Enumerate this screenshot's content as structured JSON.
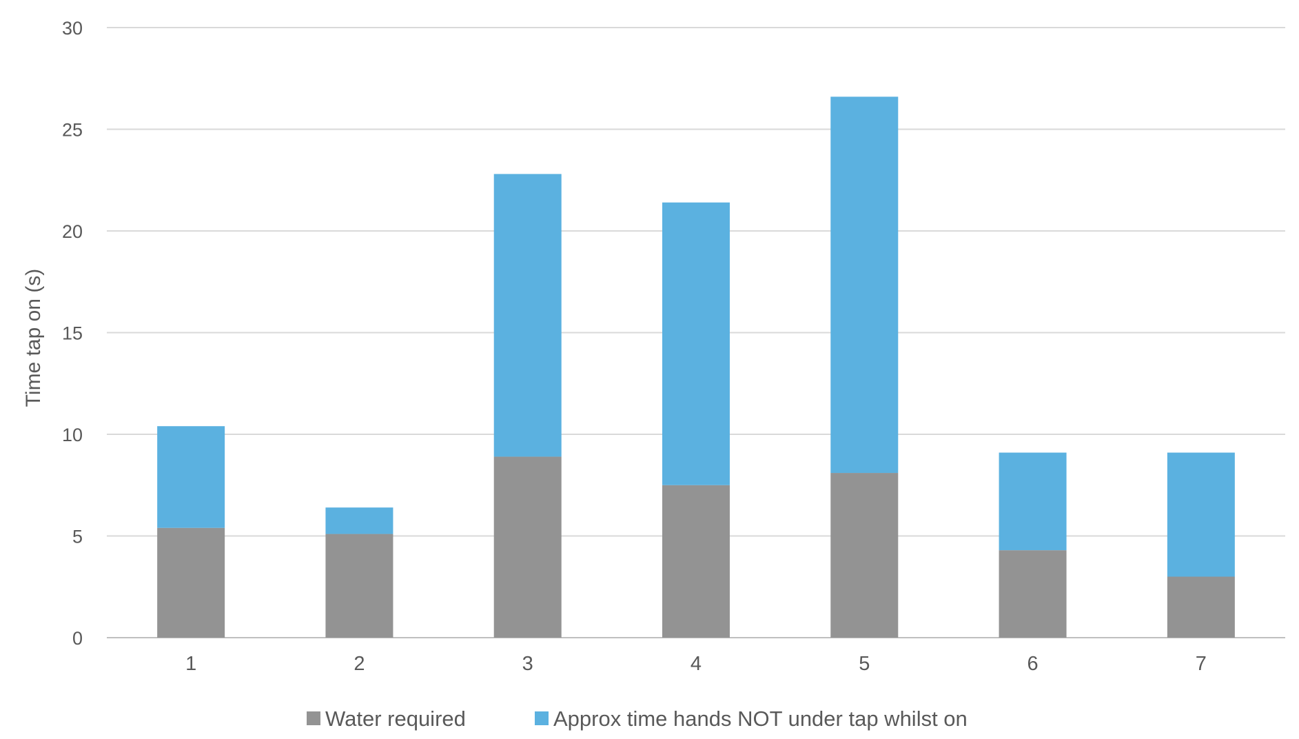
{
  "chart_data": {
    "type": "bar",
    "stacked": true,
    "categories": [
      "1",
      "2",
      "3",
      "4",
      "5",
      "6",
      "7"
    ],
    "series": [
      {
        "name": "Water required",
        "color": "#939393",
        "values": [
          5.4,
          5.1,
          8.9,
          7.5,
          8.1,
          4.3,
          3.0
        ]
      },
      {
        "name": "Approx time hands NOT under tap whilst on",
        "color": "#5bb1e0",
        "values": [
          5.0,
          1.3,
          13.9,
          13.9,
          18.5,
          4.8,
          6.1
        ]
      }
    ],
    "title": "",
    "xlabel": "",
    "ylabel": "Time tap on (s)",
    "ylim": [
      0,
      30
    ],
    "yticks": [
      0,
      5,
      10,
      15,
      20,
      25,
      30
    ],
    "grid": true,
    "legend": "bottom"
  }
}
